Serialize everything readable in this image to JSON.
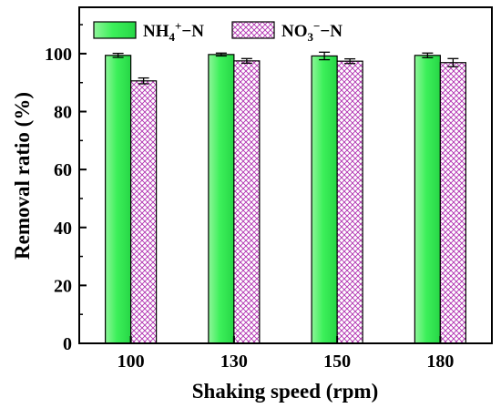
{
  "chart_data": {
    "type": "bar",
    "xlabel": "Shaking speed (rpm)",
    "ylabel": "Removal ratio (%)",
    "ylim": [
      0,
      116
    ],
    "yticks": [
      0,
      20,
      40,
      60,
      80,
      100
    ],
    "categories": [
      "100",
      "130",
      "150",
      "180"
    ],
    "legend_position": "top-left",
    "grid": false,
    "series": [
      {
        "name": "NH4+−N",
        "legend": {
          "base": "NH",
          "sub": "4",
          "sup": "+",
          "tail": "−N"
        },
        "values": [
          99.4,
          99.7,
          99.2,
          99.4
        ],
        "errors": [
          0.7,
          0.5,
          1.3,
          0.8
        ],
        "color": "#33ee55",
        "pattern": "gradient"
      },
      {
        "name": "NO3−−N",
        "legend": {
          "base": "NO",
          "sub": "3",
          "sup": "−",
          "tail": "−N"
        },
        "values": [
          90.6,
          97.5,
          97.4,
          96.9
        ],
        "errors": [
          1.0,
          0.8,
          0.8,
          1.4
        ],
        "color": "#bb33bb",
        "pattern": "crosshatch"
      }
    ]
  }
}
